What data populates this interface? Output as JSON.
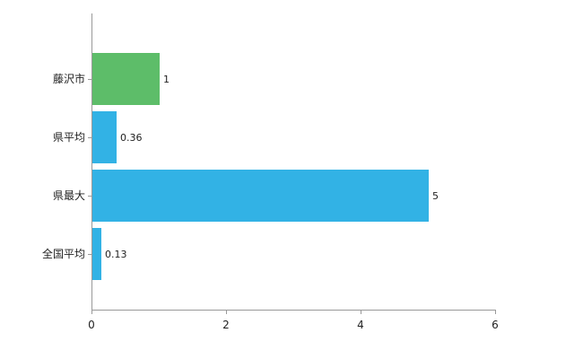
{
  "chart_data": {
    "type": "bar",
    "orientation": "horizontal",
    "title": "",
    "categories": [
      "藤沢市",
      "県平均",
      "県最大",
      "全国平均"
    ],
    "values": [
      1,
      0.36,
      5,
      0.13
    ],
    "value_labels": [
      "1",
      "0.36",
      "5",
      "0.13"
    ],
    "bar_colors": [
      "#5dbd69",
      "#32b2e5",
      "#32b2e5",
      "#32b2e5"
    ],
    "xlim": [
      0,
      6
    ],
    "xticks": [
      0,
      2,
      4,
      6
    ],
    "xtick_labels": [
      "0",
      "2",
      "4",
      "6"
    ],
    "axis_color": "#999999",
    "text_color": "#222222",
    "grid": false,
    "legend": false
  }
}
